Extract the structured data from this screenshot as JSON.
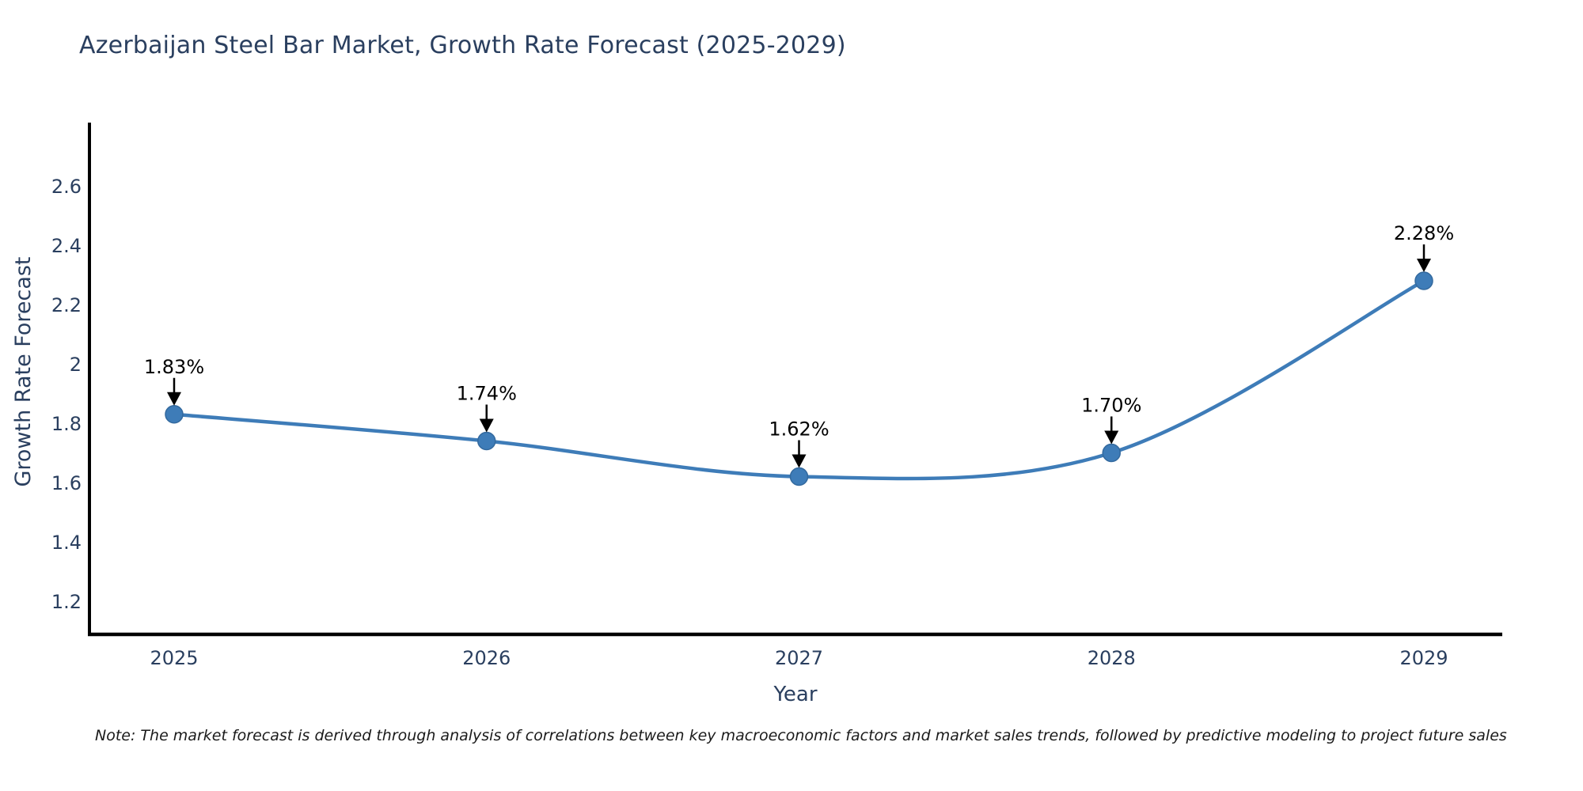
{
  "title": "Azerbaijan Steel Bar Market, Growth Rate Forecast (2025-2029)",
  "note": "Note: The market forecast is derived through analysis of correlations between key macroeconomic factors and market sales trends, followed by predictive modeling to project future sales",
  "chart_data": {
    "type": "line",
    "title": "Azerbaijan Steel Bar Market, Growth Rate Forecast (2025-2029)",
    "xlabel": "Year",
    "ylabel": "Growth Rate Forecast",
    "x": [
      2025,
      2026,
      2027,
      2028,
      2029
    ],
    "series": [
      {
        "name": "Growth Rate Forecast",
        "values": [
          1.83,
          1.74,
          1.62,
          1.7,
          2.28
        ]
      }
    ],
    "point_labels": [
      "1.83%",
      "1.74%",
      "1.62%",
      "1.70%",
      "2.28%"
    ],
    "yticks": [
      1.2,
      1.4,
      1.6,
      1.8,
      2.0,
      2.2,
      2.4,
      2.6
    ],
    "ylim": [
      1.09,
      2.84
    ],
    "grid": false,
    "legend": "none",
    "smooth": true,
    "colors": {
      "line": "#3E7CB8",
      "marker": "#3E7CB8",
      "marker_edge": "#33699E",
      "axis": "#000000",
      "tick_text": "#2a3f5f",
      "annotation": "#000000"
    }
  }
}
